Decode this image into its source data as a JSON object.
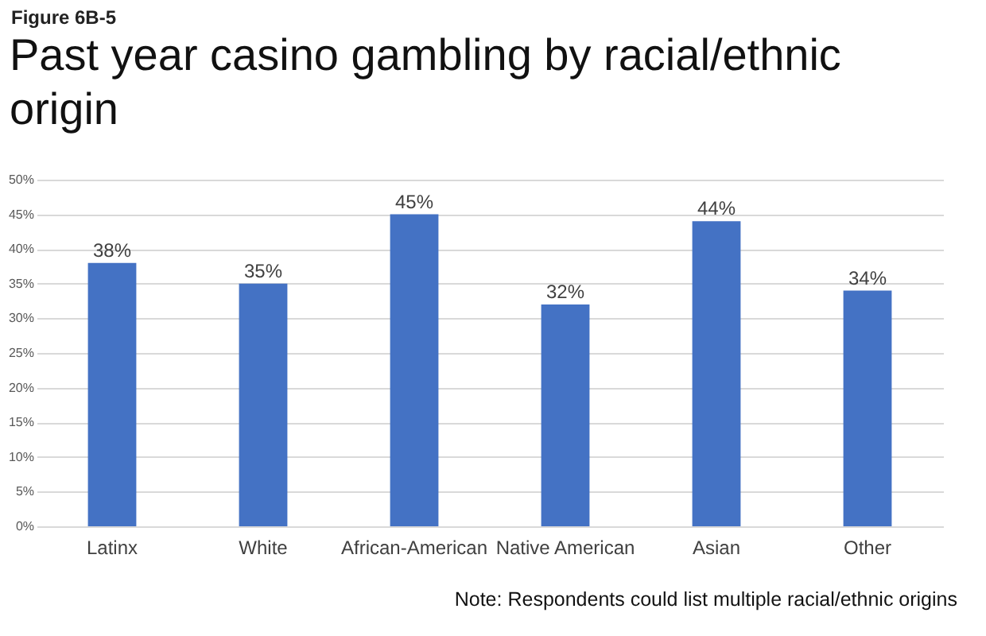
{
  "chart_data": {
    "type": "bar",
    "title": "Past year casino gambling by racial/ethnic origin",
    "categories": [
      "Latinx",
      "White",
      "African-American",
      "Native American",
      "Asian",
      "Other"
    ],
    "values": [
      38,
      35,
      45,
      32,
      44,
      34
    ],
    "value_labels": [
      "38%",
      "35%",
      "45%",
      "32%",
      "44%",
      "34%"
    ],
    "color": "#4472c4",
    "ylim": [
      0,
      50
    ],
    "yticks": [
      {
        "value": 0,
        "label": "0%"
      },
      {
        "value": 5,
        "label": "5%"
      },
      {
        "value": 10,
        "label": "10%"
      },
      {
        "value": 15,
        "label": "15%"
      },
      {
        "value": 20,
        "label": "20%"
      },
      {
        "value": 25,
        "label": "25%"
      },
      {
        "value": 30,
        "label": "30%"
      },
      {
        "value": 35,
        "label": "35%"
      },
      {
        "value": 40,
        "label": "40%"
      },
      {
        "value": 45,
        "label": "45%"
      },
      {
        "value": 50,
        "label": "50%"
      }
    ],
    "grid": "y",
    "annotations": [
      "Figure 6B-5",
      "Note:  Respondents could list multiple racial/ethnic origins"
    ]
  }
}
